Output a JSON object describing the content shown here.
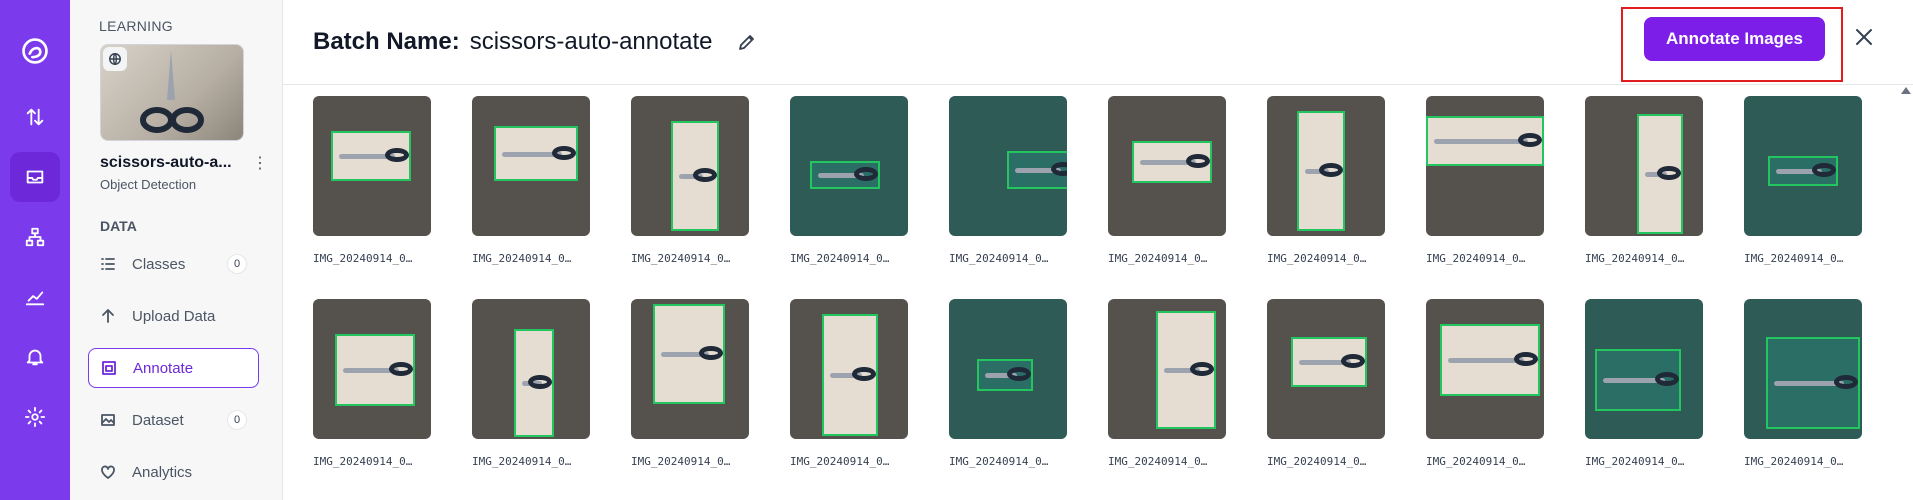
{
  "sidebar": {
    "section_label": "LEARNING",
    "project_name": "scissors-auto-a...",
    "project_type": "Object Detection",
    "data_label": "DATA",
    "items": [
      {
        "label": "Classes",
        "count": "0",
        "icon": "list-icon"
      },
      {
        "label": "Upload Data",
        "count": "",
        "icon": "upload-arrow-icon"
      },
      {
        "label": "Annotate",
        "count": "",
        "icon": "annotate-icon",
        "active": true
      },
      {
        "label": "Dataset",
        "count": "0",
        "icon": "image-icon"
      },
      {
        "label": "Analytics",
        "count": "",
        "icon": "heart-icon"
      }
    ]
  },
  "rail": {
    "icons": [
      "logo-icon",
      "swap-arrows-icon",
      "inbox-icon",
      "network-icon",
      "chart-icon",
      "bell-icon",
      "settings-icon"
    ],
    "active": "inbox-icon"
  },
  "header": {
    "title_label": "Batch Name:",
    "title_value": "scissors-auto-annotate",
    "annotate_button": "Annotate Images"
  },
  "images": {
    "row1": [
      "IMG_20240914_0…",
      "IMG_20240914_0…",
      "IMG_20240914_0…",
      "IMG_20240914_0…",
      "IMG_20240914_0…",
      "IMG_20240914_0…",
      "IMG_20240914_0…",
      "IMG_20240914_0…",
      "IMG_20240914_0…",
      "IMG_20240914_0…"
    ],
    "row2": [
      "IMG_20240914_0…",
      "IMG_20240914_0…",
      "IMG_20240914_0…",
      "IMG_20240914_0…",
      "IMG_20240914_0…",
      "IMG_20240914_0…",
      "IMG_20240914_0…",
      "IMG_20240914_0…",
      "IMG_20240914_0…",
      "IMG_20240914_0…"
    ]
  },
  "colors": {
    "rail": "#7c3aed",
    "accent": "#7c1de8",
    "bbox": "#22c55e",
    "highlight": "#e11d1d"
  }
}
